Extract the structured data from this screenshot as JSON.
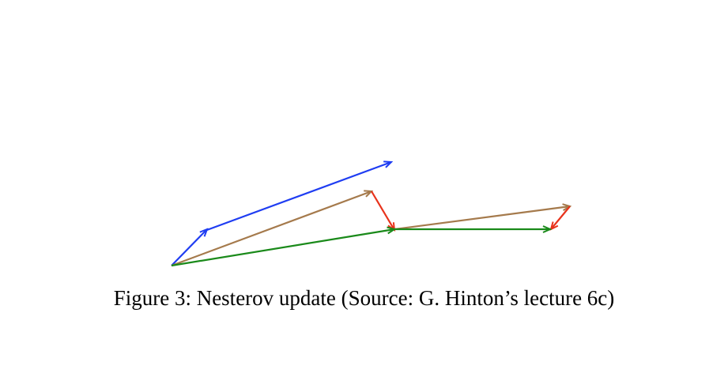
{
  "figure": {
    "caption": "Figure 3: Nesterov update (Source: G. Hinton’s lecture 6c)"
  },
  "colors": {
    "blue": "#1f3df2",
    "brown": "#a57a4c",
    "red": "#e8331c",
    "green": "#1a8a1a"
  }
}
